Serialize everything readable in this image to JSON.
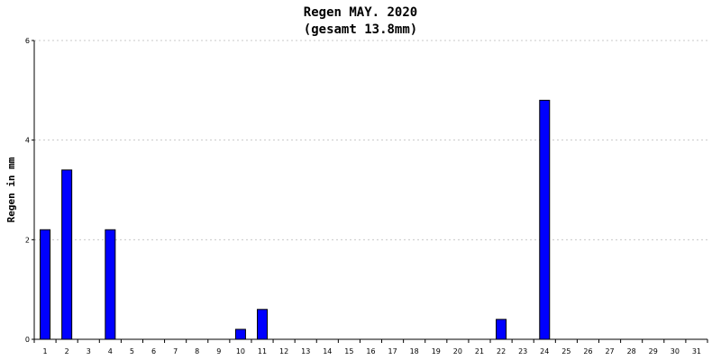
{
  "chart_data": {
    "type": "bar",
    "title": "Regen MAY. 2020",
    "subtitle": "(gesamt 13.8mm)",
    "xlabel": "",
    "ylabel": "Regen in mm",
    "categories": [
      "1",
      "2",
      "3",
      "4",
      "5",
      "6",
      "7",
      "8",
      "9",
      "10",
      "11",
      "12",
      "13",
      "14",
      "15",
      "16",
      "17",
      "18",
      "19",
      "20",
      "21",
      "22",
      "23",
      "24",
      "25",
      "26",
      "27",
      "28",
      "29",
      "30",
      "31"
    ],
    "values": [
      2.2,
      3.4,
      0,
      2.2,
      0,
      0,
      0,
      0,
      0,
      0.2,
      0.6,
      0,
      0,
      0,
      0,
      0,
      0,
      0,
      0,
      0,
      0,
      0.4,
      0,
      4.8,
      0,
      0,
      0,
      0,
      0,
      0,
      0
    ],
    "ylim": [
      0,
      6
    ],
    "yticks": [
      "0",
      "2",
      "4",
      "6"
    ],
    "grid": true,
    "colors": {
      "bar": "#0000ff",
      "bar_border": "#000000",
      "grid": "#c8c8c8",
      "axis": "#000000"
    }
  }
}
